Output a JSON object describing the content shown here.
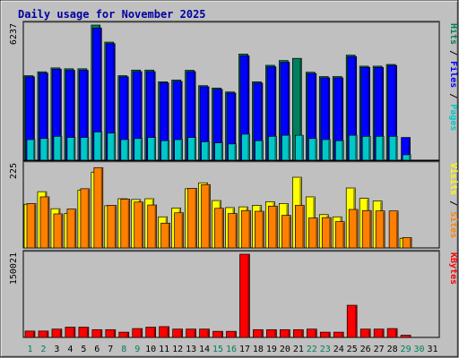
{
  "chart_data": {
    "type": "bar",
    "title": "Daily usage for November 2025",
    "categories": [
      "1",
      "2",
      "3",
      "4",
      "5",
      "6",
      "7",
      "8",
      "9",
      "10",
      "11",
      "12",
      "13",
      "14",
      "15",
      "16",
      "17",
      "18",
      "19",
      "20",
      "21",
      "22",
      "23",
      "24",
      "25",
      "26",
      "27",
      "28",
      "29",
      "30",
      "31"
    ],
    "weekend_days": [
      1,
      2,
      8,
      9,
      15,
      16,
      22,
      23,
      29,
      30
    ],
    "hits_panel": {
      "ymax_label": "6237",
      "ymax": 6237,
      "legend": [
        "Pages",
        "Files",
        "Hits"
      ],
      "series": [
        {
          "name": "Hits",
          "values": [
            3900,
            4080,
            4260,
            4220,
            4220,
            6237,
            5450,
            3900,
            4160,
            4160,
            3620,
            3700,
            4150,
            3440,
            3330,
            3150,
            4900,
            3620,
            4380,
            4600,
            4700,
            4060,
            3860,
            3860,
            4850,
            4340,
            4340,
            4420,
            0,
            0,
            0
          ]
        },
        {
          "name": "Files",
          "values": [
            3850,
            4020,
            4200,
            4150,
            4150,
            6100,
            5380,
            3850,
            4090,
            4090,
            3570,
            3640,
            4090,
            3390,
            3270,
            3100,
            4820,
            3560,
            4310,
            4520,
            0,
            4000,
            3800,
            3800,
            4780,
            4280,
            4280,
            4370,
            1050,
            0,
            0
          ]
        },
        {
          "name": "Pages",
          "values": [
            950,
            1000,
            1100,
            1050,
            1050,
            1300,
            1250,
            950,
            1000,
            1050,
            900,
            950,
            1050,
            850,
            800,
            750,
            1200,
            900,
            1100,
            1150,
            1150,
            1000,
            950,
            900,
            1150,
            1100,
            1100,
            1100,
            250,
            0,
            0
          ]
        }
      ],
      "colors": {
        "Hits": "#00805c",
        "Files": "#0000ff",
        "Pages": "#00c8c8"
      }
    },
    "visits_panel": {
      "ymax_label": "225",
      "ymax": 225,
      "legend": [
        "Sites",
        "Visits"
      ],
      "series": [
        {
          "name": "Visits",
          "values": [
            118,
            152,
            106,
            93,
            156,
            205,
            114,
            133,
            131,
            133,
            84,
            108,
            160,
            176,
            128,
            109,
            111,
            115,
            125,
            120,
            191,
            138,
            90,
            84,
            162,
            134,
            127,
            0,
            26,
            0,
            0
          ]
        },
        {
          "name": "Sites",
          "values": [
            120,
            138,
            92,
            105,
            160,
            217,
            115,
            132,
            124,
            116,
            67,
            95,
            161,
            171,
            107,
            93,
            101,
            99,
            113,
            88,
            115,
            81,
            82,
            71,
            104,
            101,
            100,
            100,
            28,
            0,
            0
          ]
        }
      ],
      "colors": {
        "Visits": "#ffff00",
        "Sites": "#ff8000"
      }
    },
    "kbytes_panel": {
      "ymax_label": "150021",
      "ymax": 150021,
      "legend": [
        "KBytes"
      ],
      "series": [
        {
          "name": "KBytes",
          "values": [
            11500,
            11500,
            15000,
            18500,
            18500,
            14000,
            14000,
            9500,
            16000,
            18500,
            19500,
            15000,
            15000,
            15000,
            11000,
            11000,
            150021,
            14000,
            14000,
            14000,
            14000,
            15000,
            9500,
            9500,
            58000,
            15000,
            15000,
            16000,
            4000,
            0,
            0
          ]
        }
      ],
      "colors": {
        "KBytes": "#ff0000"
      }
    }
  }
}
